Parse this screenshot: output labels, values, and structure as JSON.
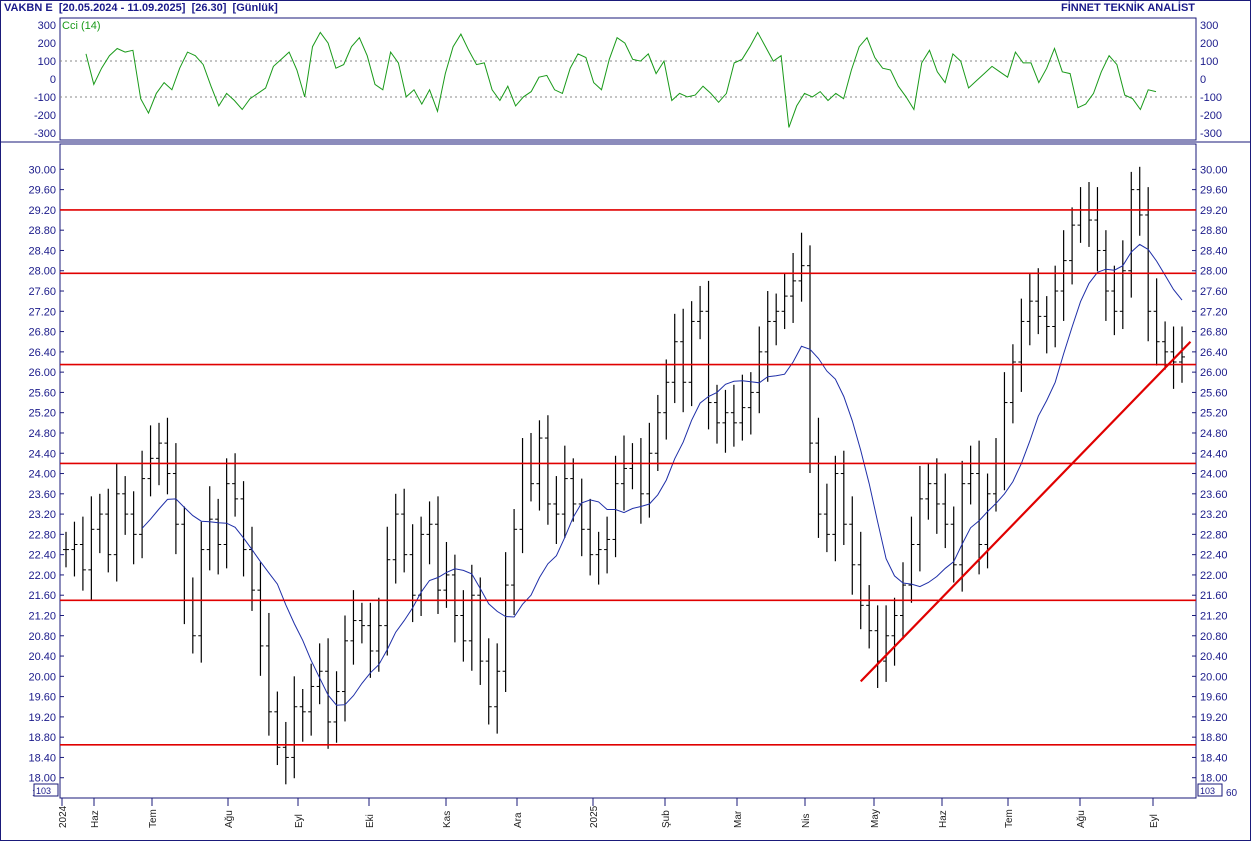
{
  "header": {
    "symbol": "VAKBN E",
    "range": "[20.05.2024 - 11.09.2025]",
    "last": "[26.30]",
    "period": "[Günlük]",
    "brand": "FİNNET TEKNİK ANALİST"
  },
  "colors": {
    "price_bars": "#000000",
    "moving_average": "#1f2fa8",
    "levels": "#e00000",
    "trendline": "#e00000",
    "indicator": "#1a9a1a",
    "axis_text": "#1a1a8a",
    "frame": "#1a1a7a"
  },
  "chart_data": [
    {
      "type": "line",
      "title": "",
      "series": [
        {
          "name": "Cci (14)",
          "color": "#1a9a1a",
          "values": [
            140,
            -30,
            60,
            130,
            170,
            150,
            160,
            -110,
            -190,
            -80,
            -20,
            -60,
            60,
            150,
            130,
            80,
            -40,
            -150,
            -80,
            -120,
            -170,
            -110,
            -80,
            -50,
            70,
            110,
            150,
            50,
            -100,
            180,
            260,
            200,
            60,
            80,
            180,
            230,
            130,
            -30,
            -60,
            150,
            90,
            -100,
            -60,
            -140,
            -60,
            -180,
            30,
            180,
            250,
            160,
            80,
            90,
            -60,
            -120,
            -40,
            -150,
            -100,
            -70,
            10,
            20,
            -60,
            -80,
            60,
            140,
            120,
            -20,
            -60,
            110,
            230,
            200,
            110,
            100,
            140,
            30,
            100,
            -120,
            -80,
            -100,
            -90,
            -40,
            -80,
            -130,
            -80,
            90,
            110,
            180,
            260,
            180,
            100,
            130,
            -270,
            -150,
            -80,
            -100,
            -70,
            -120,
            -80,
            -110,
            50,
            180,
            230,
            120,
            60,
            50,
            -40,
            -100,
            -170,
            90,
            160,
            40,
            -20,
            140,
            100,
            -50,
            -10,
            30,
            70,
            40,
            10,
            150,
            90,
            90,
            -20,
            60,
            170,
            40,
            30,
            -160,
            -140,
            -80,
            40,
            130,
            80,
            -90,
            -110,
            -170,
            -60,
            -70
          ]
        }
      ],
      "xlabel": "",
      "ylabel": "",
      "ylim": [
        -340,
        340
      ],
      "yticks": [
        "300",
        "200",
        "100",
        "0",
        "-100",
        "-200",
        "-300"
      ],
      "grid": true
    },
    {
      "type": "candlestick",
      "title": "",
      "xlabel": "",
      "ylabel": "",
      "ylim": [
        17.6,
        30.5
      ],
      "yticks": [
        "30.00",
        "29.60",
        "29.20",
        "28.80",
        "28.40",
        "28.00",
        "27.60",
        "27.20",
        "26.80",
        "26.40",
        "26.00",
        "25.60",
        "25.20",
        "24.80",
        "24.40",
        "24.00",
        "23.60",
        "23.20",
        "22.80",
        "22.40",
        "22.00",
        "21.60",
        "21.20",
        "20.80",
        "20.40",
        "20.00",
        "19.60",
        "19.20",
        "18.80",
        "18.40",
        "18.00",
        "17.60"
      ],
      "ytick_bottom_label": "17",
      "scale_badge": "10^3",
      "right_scale_badge": "10^3",
      "right_bottom_label": "60",
      "xticks": [
        "2024",
        "Haz",
        "Tem",
        "Ağu",
        "Eyl",
        "Eki",
        "Kas",
        "Ara",
        "2025",
        "Şub",
        "Mar",
        "Nis",
        "May",
        "Haz",
        "Tem",
        "Ağu",
        "Eyl"
      ],
      "close": [
        22.5,
        22.6,
        22.1,
        22.9,
        23.2,
        22.4,
        23.6,
        23.2,
        22.8,
        23.9,
        24.3,
        24.6,
        24.0,
        23.0,
        21.5,
        20.8,
        22.5,
        23.1,
        22.6,
        23.8,
        23.5,
        22.5,
        21.7,
        20.6,
        19.3,
        18.6,
        18.4,
        19.4,
        19.3,
        19.8,
        20.1,
        19.1,
        19.7,
        20.7,
        21.1,
        21.0,
        20.5,
        21.0,
        22.3,
        23.2,
        22.4,
        21.6,
        22.8,
        23.0,
        21.7,
        22.0,
        21.2,
        20.7,
        21.6,
        20.3,
        19.4,
        20.1,
        21.8,
        22.9,
        24.2,
        23.8,
        24.7,
        23.4,
        23.2,
        23.9,
        23.4,
        22.9,
        22.4,
        22.5,
        22.7,
        23.8,
        24.1,
        24.2,
        23.6,
        24.4,
        25.2,
        25.8,
        26.6,
        25.8,
        27.0,
        27.2,
        25.4,
        25.0,
        25.2,
        25.0,
        25.3,
        25.6,
        26.4,
        27.0,
        27.2,
        27.5,
        27.8,
        28.1,
        24.6,
        23.2,
        22.8,
        24.0,
        23.0,
        22.2,
        21.4,
        20.9,
        20.3,
        20.8,
        21.2,
        21.8,
        22.6,
        23.5,
        23.8,
        23.4,
        23.0,
        22.2,
        23.8,
        24.0,
        22.6,
        23.6,
        24.2,
        25.4,
        26.2,
        27.0,
        27.4,
        27.1,
        26.9,
        27.6,
        28.2,
        28.9,
        29.2,
        29.0,
        28.4,
        27.6,
        27.2,
        28.0,
        29.6,
        29.1,
        27.2,
        26.6,
        26.4,
        26.2,
        26.3
      ],
      "moving_average_name": "",
      "levels": [
        29.2,
        27.95,
        26.15,
        24.2,
        21.5,
        18.65
      ],
      "trendline": [
        {
          "x": 94,
          "y": 19.9
        },
        {
          "x": 133,
          "y": 26.6
        }
      ]
    }
  ]
}
